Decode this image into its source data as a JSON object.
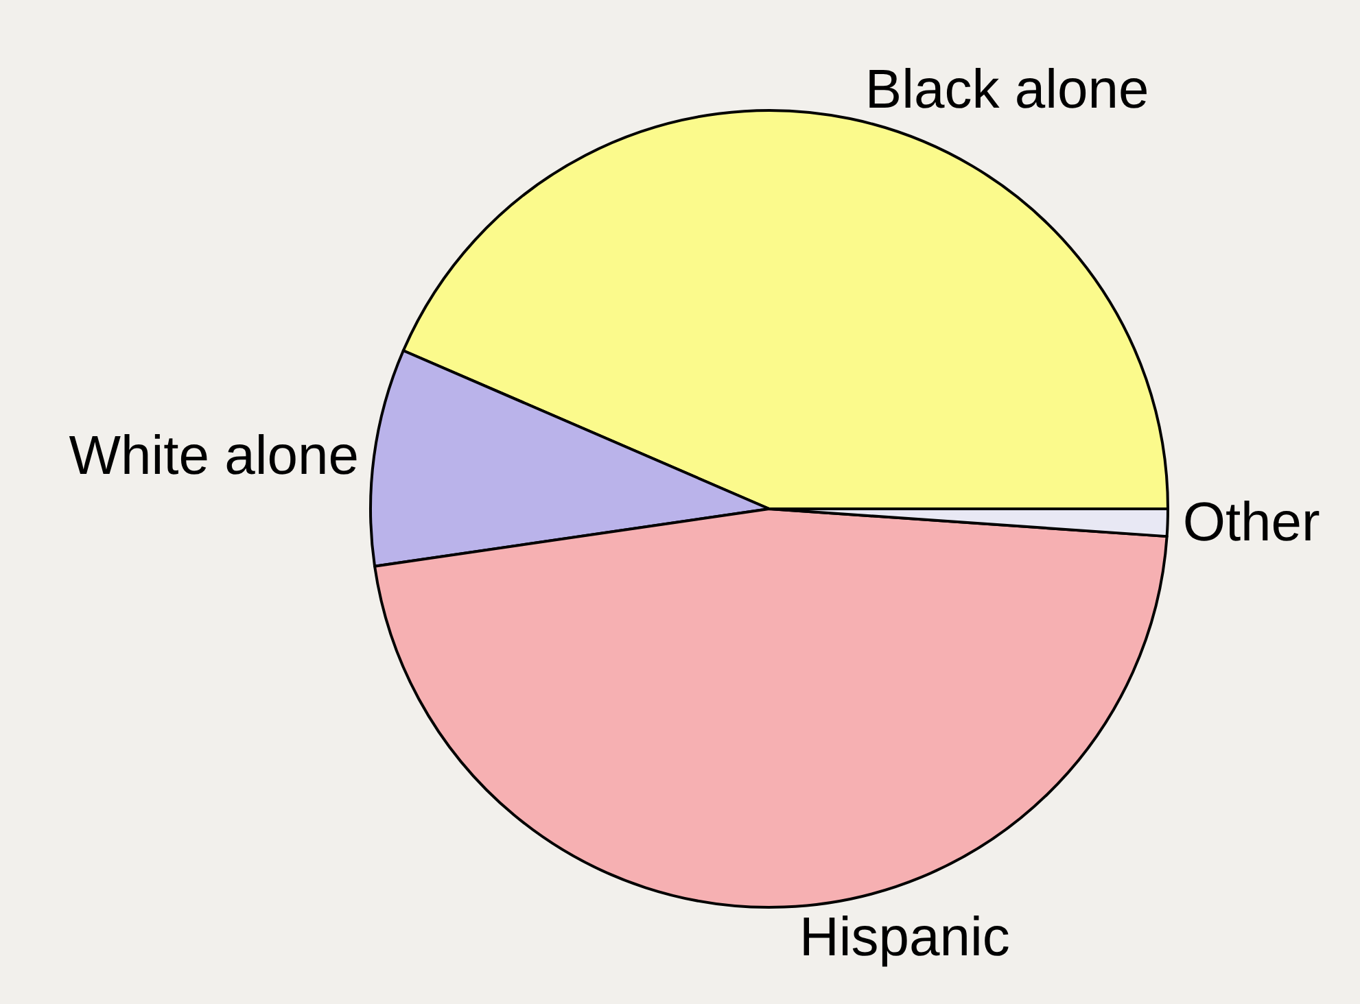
{
  "chart_data": {
    "type": "pie",
    "categories": [
      "Black alone",
      "White alone",
      "Hispanic",
      "Other"
    ],
    "values": [
      43.5,
      8.8,
      46.6,
      1.1
    ],
    "colors": [
      "#fbfa8c",
      "#bab3ea",
      "#f6b0b2",
      "#e8e8f4"
    ]
  }
}
